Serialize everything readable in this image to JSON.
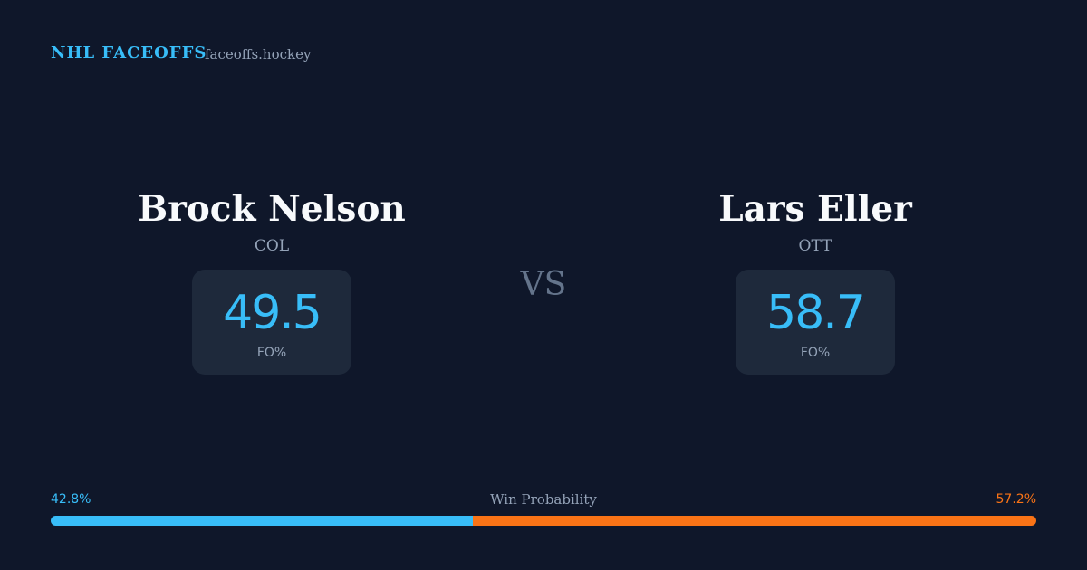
{
  "header": {
    "brand": "NHL FACEOFFS",
    "site": "faceoffs.hockey"
  },
  "players": [
    {
      "name": "Brock Nelson",
      "team": "COL",
      "fo_pct": 49.5,
      "fo_label": "FO%"
    },
    {
      "name": "Lars Eller",
      "team": "OTT",
      "fo_pct": 58.7,
      "fo_label": "FO%"
    }
  ],
  "versus": "VS",
  "win_probability": {
    "title": "Win Probability",
    "left": {
      "value": 42.8,
      "label": "42.8%"
    },
    "right": {
      "value": 57.2,
      "label": "57.2%"
    }
  }
}
